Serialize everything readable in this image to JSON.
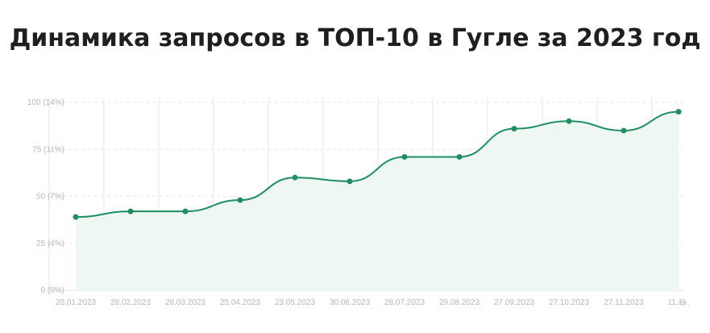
{
  "title": "Динамика запросов в ТОП-10 в Гугле за 2023 год",
  "colors": {
    "line": "#1f8f63",
    "area": "#eef7f2",
    "grid": "#e6e6e6",
    "tick_text": "#b7b7b7",
    "title_text": "#1f1f1f"
  },
  "chart_data": {
    "type": "line",
    "title": "Динамика запросов в ТОП-10 в Гугле за 2023 год",
    "xlabel": "",
    "ylabel": "",
    "ylim": [
      0,
      100
    ],
    "y_ticks": [
      {
        "value": 100,
        "label": "100 (14%)"
      },
      {
        "value": 75,
        "label": "75 (11%)"
      },
      {
        "value": 50,
        "label": "50 (7%)"
      },
      {
        "value": 25,
        "label": "25 (4%)"
      },
      {
        "value": 0,
        "label": "0 (0%)"
      }
    ],
    "categories": [
      "20.01.2023",
      "28.02.2023",
      "28.03.2023",
      "25.04.2023",
      "23.05.2023",
      "30.06.2023",
      "28.07.2023",
      "29.08.2023",
      "27.09.2023",
      "27.10.2023",
      "27.11.2023",
      "11.1..."
    ],
    "series": [
      {
        "values": [
          39,
          42,
          42,
          48,
          60,
          58,
          71,
          71,
          86,
          90,
          85,
          95
        ]
      }
    ],
    "grid": true,
    "area_fill": true,
    "scroll_arrow": "arrow-right-icon"
  }
}
